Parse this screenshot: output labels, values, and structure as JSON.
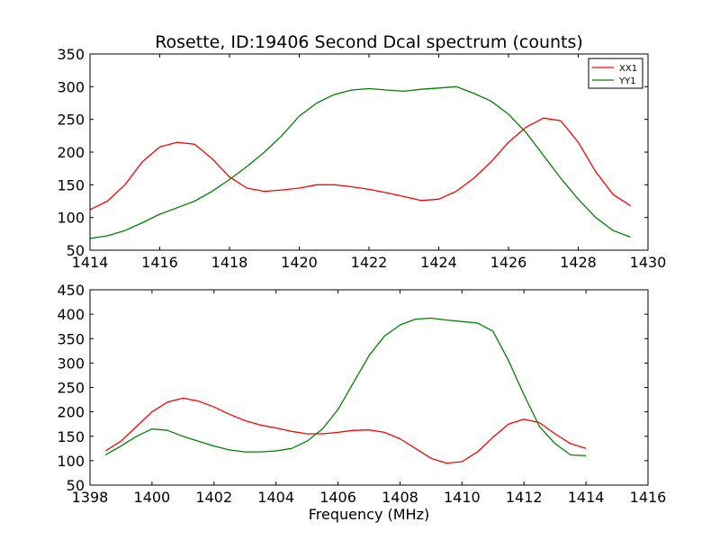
{
  "chart_data": [
    {
      "type": "line",
      "title": "Rosette, ID:19406 Second Dcal spectrum (counts)",
      "xlabel": "",
      "ylabel": "",
      "xlim": [
        1414,
        1430
      ],
      "ylim": [
        50,
        350
      ],
      "xticks": [
        1414,
        1416,
        1418,
        1420,
        1422,
        1424,
        1426,
        1428,
        1430
      ],
      "yticks": [
        50,
        100,
        150,
        200,
        250,
        300,
        350
      ],
      "grid": false,
      "legend": {
        "placement": "top-right",
        "entries": [
          "XX1",
          "YY1"
        ]
      },
      "series": [
        {
          "name": "XX1",
          "color": "#ff0000",
          "x": [
            1414.0,
            1414.5,
            1415.0,
            1415.5,
            1416.0,
            1416.5,
            1417.0,
            1417.5,
            1418.0,
            1418.5,
            1419.0,
            1419.5,
            1420.0,
            1420.5,
            1421.0,
            1421.5,
            1422.0,
            1422.5,
            1423.0,
            1423.5,
            1424.0,
            1424.5,
            1425.0,
            1425.5,
            1426.0,
            1426.5,
            1427.0,
            1427.5,
            1428.0,
            1428.5,
            1429.0,
            1429.5
          ],
          "values": [
            112,
            125,
            150,
            185,
            208,
            215,
            212,
            190,
            162,
            145,
            140,
            142,
            145,
            150,
            150,
            147,
            143,
            138,
            132,
            126,
            128,
            140,
            160,
            185,
            215,
            238,
            252,
            248,
            215,
            170,
            135,
            118
          ]
        },
        {
          "name": "YY1",
          "color": "#008000",
          "x": [
            1414.0,
            1414.5,
            1415.0,
            1415.5,
            1416.0,
            1416.5,
            1417.0,
            1417.5,
            1418.0,
            1418.5,
            1419.0,
            1419.5,
            1420.0,
            1420.5,
            1421.0,
            1421.5,
            1422.0,
            1422.5,
            1423.0,
            1423.5,
            1424.0,
            1424.5,
            1425.0,
            1425.5,
            1426.0,
            1426.5,
            1427.0,
            1427.5,
            1428.0,
            1428.5,
            1429.0,
            1429.5
          ],
          "values": [
            68,
            72,
            80,
            92,
            105,
            115,
            125,
            140,
            158,
            178,
            200,
            225,
            255,
            275,
            288,
            295,
            297,
            295,
            293,
            296,
            298,
            300,
            290,
            278,
            258,
            230,
            195,
            160,
            128,
            100,
            80,
            70
          ]
        }
      ]
    },
    {
      "type": "line",
      "title": "",
      "xlabel": "Frequency (MHz)",
      "ylabel": "",
      "xlim": [
        1398,
        1416
      ],
      "ylim": [
        50,
        450
      ],
      "xticks": [
        1398,
        1400,
        1402,
        1404,
        1406,
        1408,
        1410,
        1412,
        1414,
        1416
      ],
      "yticks": [
        50,
        100,
        150,
        200,
        250,
        300,
        350,
        400,
        450
      ],
      "grid": false,
      "series": [
        {
          "color": "#ff0000",
          "x": [
            1398.5,
            1399.0,
            1399.5,
            1400.0,
            1400.5,
            1401.0,
            1401.5,
            1402.0,
            1402.5,
            1403.0,
            1403.5,
            1404.0,
            1404.5,
            1405.0,
            1405.5,
            1406.0,
            1406.5,
            1407.0,
            1407.5,
            1408.0,
            1408.5,
            1409.0,
            1409.5,
            1410.0,
            1410.5,
            1411.0,
            1411.5,
            1412.0,
            1412.5,
            1413.0,
            1413.5,
            1414.0
          ],
          "values": [
            120,
            140,
            170,
            200,
            220,
            228,
            222,
            210,
            195,
            182,
            173,
            167,
            160,
            155,
            155,
            158,
            162,
            163,
            158,
            145,
            125,
            105,
            95,
            98,
            118,
            148,
            175,
            185,
            178,
            155,
            135,
            125
          ]
        },
        {
          "color": "#008000",
          "x": [
            1398.5,
            1399.0,
            1399.5,
            1400.0,
            1400.5,
            1401.0,
            1401.5,
            1402.0,
            1402.5,
            1403.0,
            1403.5,
            1404.0,
            1404.5,
            1405.0,
            1405.5,
            1406.0,
            1406.5,
            1407.0,
            1407.5,
            1408.0,
            1408.5,
            1409.0,
            1409.5,
            1410.0,
            1410.5,
            1411.0,
            1411.5,
            1412.0,
            1412.5,
            1413.0,
            1413.5,
            1414.0
          ],
          "values": [
            112,
            130,
            150,
            165,
            162,
            150,
            140,
            130,
            122,
            118,
            118,
            120,
            125,
            140,
            165,
            205,
            260,
            315,
            355,
            378,
            390,
            392,
            388,
            385,
            382,
            365,
            305,
            235,
            170,
            135,
            112,
            110
          ]
        }
      ]
    }
  ]
}
